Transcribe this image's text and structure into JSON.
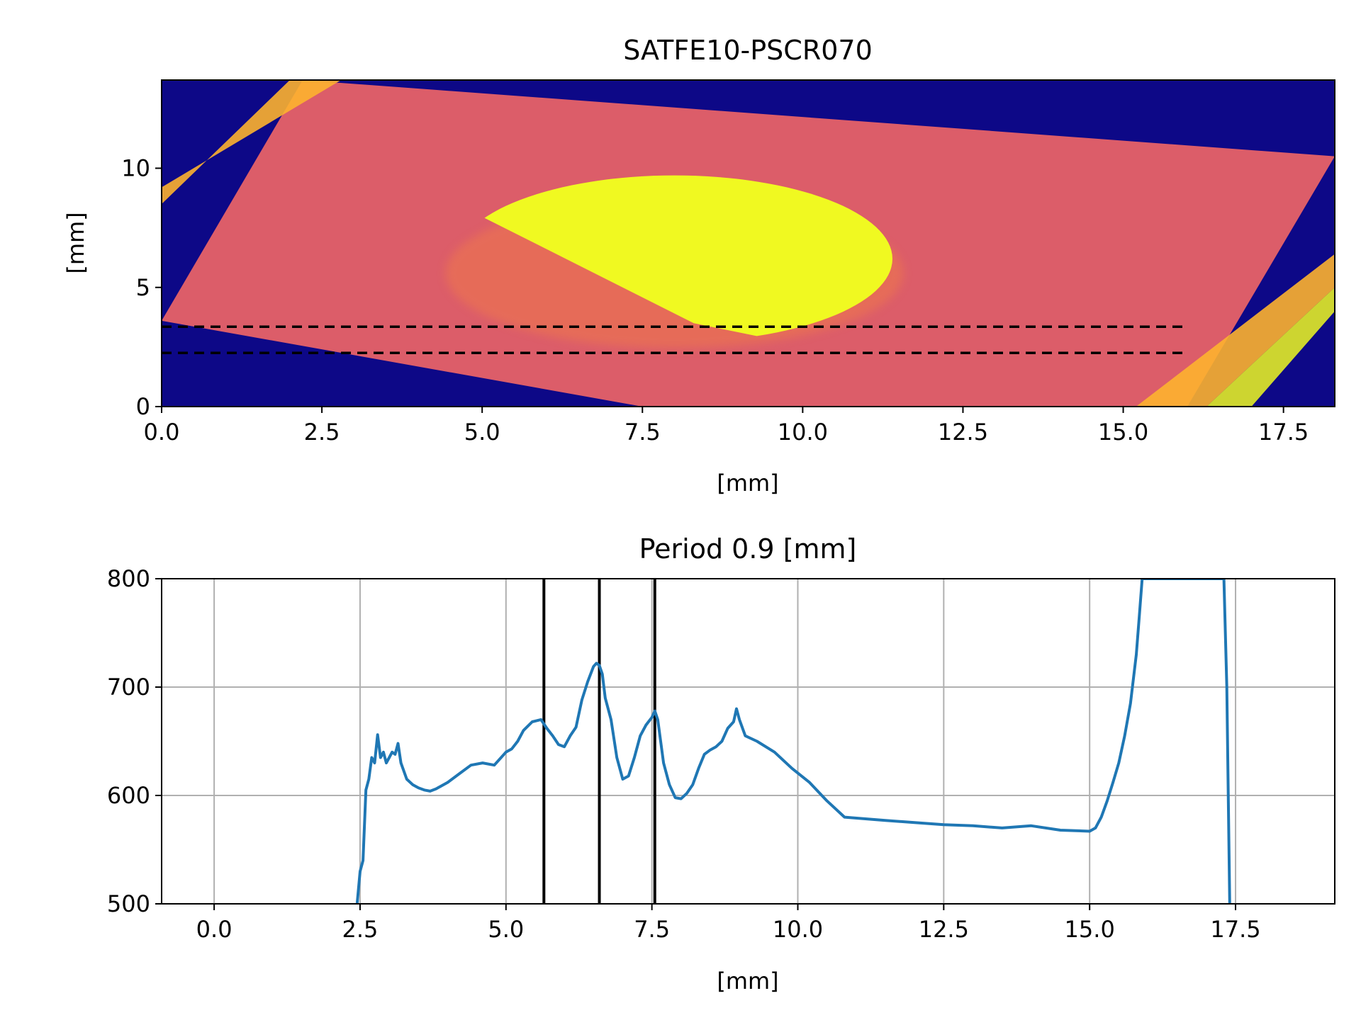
{
  "chart_data": [
    {
      "type": "heatmap",
      "title": "SATFE10-PSCR070",
      "xlabel": "[mm]",
      "ylabel": "[mm]",
      "xlim": [
        0,
        18.3
      ],
      "ylim": [
        0,
        13.7
      ],
      "xticks": [
        "0.0",
        "2.5",
        "5.0",
        "7.5",
        "10.0",
        "12.5",
        "15.0",
        "17.5"
      ],
      "yticks": [
        "0",
        "5",
        "10"
      ],
      "colormap": "plasma",
      "colors": {
        "background": "#0d0887",
        "plate": "#dc5d69",
        "spot": "#f0f921",
        "edge": "#fdb32f"
      },
      "plate_corners": [
        [
          0,
          3.6
        ],
        [
          2.2,
          13.7
        ],
        [
          18.3,
          10.5
        ],
        [
          16.0,
          0
        ],
        [
          7.5,
          0
        ]
      ],
      "spot": {
        "cx": 8.0,
        "cy": 6.2,
        "rx": 3.4,
        "ry": 3.5,
        "cut_from": [
          4.9,
          8.1
        ],
        "cut_to": [
          8.3,
          3.5
        ]
      },
      "band_lines": [
        {
          "y": 3.35,
          "x0": 0,
          "x1": 16.0,
          "style": "dashed"
        },
        {
          "y": 2.25,
          "x0": 0,
          "x1": 16.0,
          "style": "dashed"
        }
      ]
    },
    {
      "type": "line",
      "title": "Period 0.9 [mm]",
      "xlabel": "[mm]",
      "ylabel": "",
      "xlim": [
        -0.9,
        19.2
      ],
      "ylim": [
        500,
        800
      ],
      "xticks": [
        "0.0",
        "2.5",
        "5.0",
        "7.5",
        "10.0",
        "12.5",
        "15.0",
        "17.5"
      ],
      "yticks": [
        "500",
        "600",
        "700",
        "800"
      ],
      "grid": true,
      "line_color": "#1f77b4",
      "vlines": [
        5.65,
        6.6,
        7.55
      ],
      "series": [
        {
          "x": [
            2.45,
            2.5,
            2.55,
            2.6,
            2.65,
            2.7,
            2.75,
            2.8,
            2.85,
            2.9,
            2.95,
            3.0,
            3.05,
            3.1,
            3.15,
            3.2,
            3.3,
            3.4,
            3.5,
            3.6,
            3.7,
            3.8,
            4.0,
            4.2,
            4.4,
            4.6,
            4.8,
            5.0,
            5.1,
            5.2,
            5.3,
            5.45,
            5.6,
            5.7,
            5.8,
            5.9,
            6.0,
            6.1,
            6.2,
            6.3,
            6.4,
            6.5,
            6.55,
            6.6,
            6.65,
            6.7,
            6.8,
            6.9,
            7.0,
            7.1,
            7.2,
            7.3,
            7.4,
            7.5,
            7.55,
            7.6,
            7.7,
            7.8,
            7.9,
            8.0,
            8.1,
            8.2,
            8.3,
            8.4,
            8.5,
            8.6,
            8.7,
            8.8,
            8.9,
            8.95,
            9.0,
            9.1,
            9.3,
            9.6,
            9.9,
            10.2,
            10.5,
            10.8,
            11.5,
            12.0,
            12.5,
            13.0,
            13.5,
            14.0,
            14.5,
            15.0,
            15.1,
            15.2,
            15.3,
            15.4,
            15.5,
            15.6,
            15.7,
            15.8,
            15.85,
            15.9,
            17.3,
            17.35,
            17.4
          ],
          "y": [
            500,
            530,
            540,
            605,
            615,
            635,
            630,
            656,
            635,
            640,
            630,
            635,
            640,
            638,
            648,
            630,
            615,
            610,
            607,
            605,
            604,
            606,
            612,
            620,
            628,
            630,
            628,
            640,
            643,
            650,
            660,
            668,
            670,
            662,
            655,
            647,
            645,
            655,
            663,
            688,
            705,
            719,
            722,
            720,
            712,
            690,
            670,
            635,
            615,
            618,
            635,
            655,
            665,
            672,
            678,
            670,
            630,
            610,
            598,
            597,
            602,
            610,
            625,
            638,
            642,
            645,
            650,
            662,
            668,
            680,
            670,
            655,
            650,
            640,
            625,
            612,
            595,
            580,
            577,
            575,
            573,
            572,
            570,
            572,
            568,
            567,
            570,
            580,
            595,
            612,
            630,
            655,
            685,
            730,
            765,
            800,
            800,
            700,
            500
          ]
        }
      ]
    }
  ]
}
